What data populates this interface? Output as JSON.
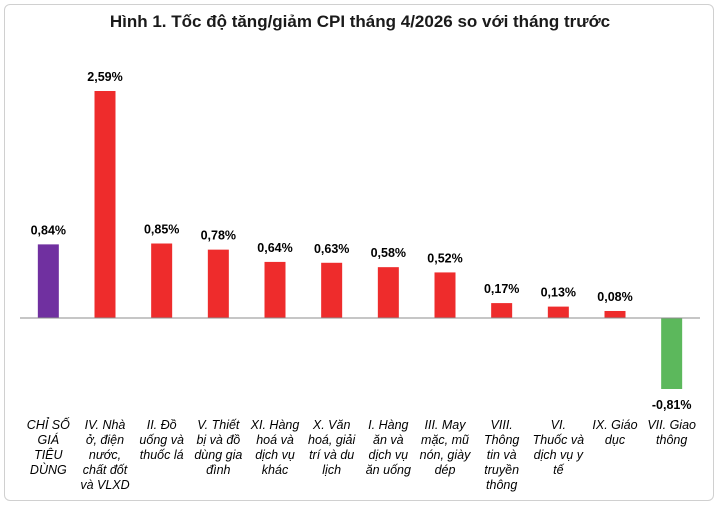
{
  "chart_data": {
    "type": "bar",
    "title": "Hình 1. Tốc độ tăng/giảm CPI tháng 4/2026 so với tháng trước",
    "xlabel": "",
    "ylabel": "",
    "ylim": [
      -1.1,
      2.75
    ],
    "grid": false,
    "legend": "none",
    "categories": [
      "CHỈ SỐ GIÁ TIÊU DÙNG",
      "IV. Nhà ở, điện nước, chất đốt và VLXD",
      "II. Đồ uống và thuốc lá",
      "V. Thiết bị và đồ dùng gia đình",
      "XI. Hàng hoá và dịch vụ khác",
      "X. Văn hoá, giải trí và du lịch",
      "I. Hàng ăn và dịch vụ ăn uống",
      "III. May mặc, mũ nón, giày dép",
      "VIII. Thông tin và truyền thông",
      "VI. Thuốc và dịch vụ y tế",
      "IX. Giáo dục",
      "VII. Giao thông"
    ],
    "category_lines": [
      [
        "CHỈ SỐ",
        "GIÁ",
        "TIÊU",
        "DÙNG"
      ],
      [
        "IV. Nhà",
        "ở, điện",
        "nước,",
        "chất đốt",
        "và VLXD"
      ],
      [
        "II. Đồ",
        "uống và",
        "thuốc lá"
      ],
      [
        "V. Thiết",
        "bị và đồ",
        "dùng gia",
        "đình"
      ],
      [
        "XI. Hàng",
        "hoá và",
        "dịch vụ",
        "khác"
      ],
      [
        "X. Văn",
        "hoá, giải",
        "trí và du",
        "lịch"
      ],
      [
        "I. Hàng",
        "ăn và",
        "dịch vụ",
        "ăn uống"
      ],
      [
        "III. May",
        "mặc, mũ",
        "nón, giày",
        "dép"
      ],
      [
        "VIII.",
        "Thông",
        "tin và",
        "truyền",
        "thông"
      ],
      [
        "VI.",
        "Thuốc và",
        "dịch vụ y",
        "tế"
      ],
      [
        "IX. Giáo",
        "dục"
      ],
      [
        "VII. Giao",
        "thông"
      ]
    ],
    "values": [
      0.84,
      2.59,
      0.85,
      0.78,
      0.64,
      0.63,
      0.58,
      0.52,
      0.17,
      0.13,
      0.08,
      -0.81
    ],
    "value_labels": [
      "0,84%",
      "2,59%",
      "0,85%",
      "0,78%",
      "0,64%",
      "0,63%",
      "0,58%",
      "0,52%",
      "0,17%",
      "0,13%",
      "0,08%",
      "-0,81%"
    ],
    "colors": {
      "total": "#7030a0",
      "positive": "#ee2c2c",
      "negative": "#5cb85c"
    }
  }
}
